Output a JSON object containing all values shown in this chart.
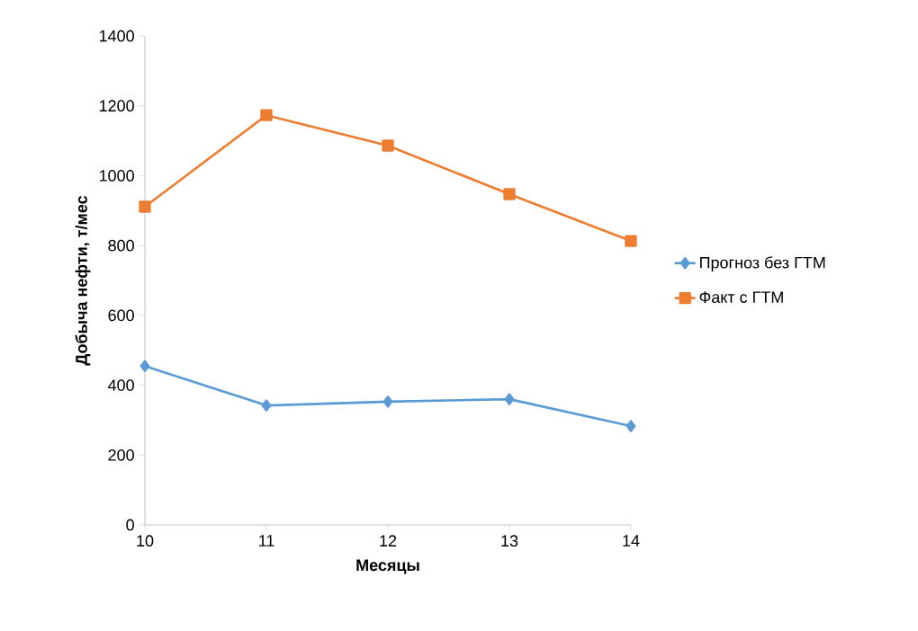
{
  "chart_data": {
    "type": "line",
    "xlabel": "Месяцы",
    "ylabel": "Добыча нефти, т/мес",
    "x": [
      10,
      11,
      12,
      13,
      14
    ],
    "series": [
      {
        "name": "Прогноз без ГТМ",
        "color": "#5b9bd5",
        "marker": "diamond",
        "values": [
          455,
          342,
          353,
          360,
          283
        ]
      },
      {
        "name": "Факт с ГТМ",
        "color": "#ed7d31",
        "marker": "square",
        "values": [
          911,
          1173,
          1086,
          947,
          813
        ]
      }
    ],
    "xlim": [
      10,
      14
    ],
    "xticks": [
      10,
      11,
      12,
      13,
      14
    ],
    "ylim": [
      0,
      1400
    ],
    "yticks": [
      0,
      200,
      400,
      600,
      800,
      1000,
      1200,
      1400
    ],
    "grid": false,
    "legend": "right",
    "line_style": "solid"
  }
}
